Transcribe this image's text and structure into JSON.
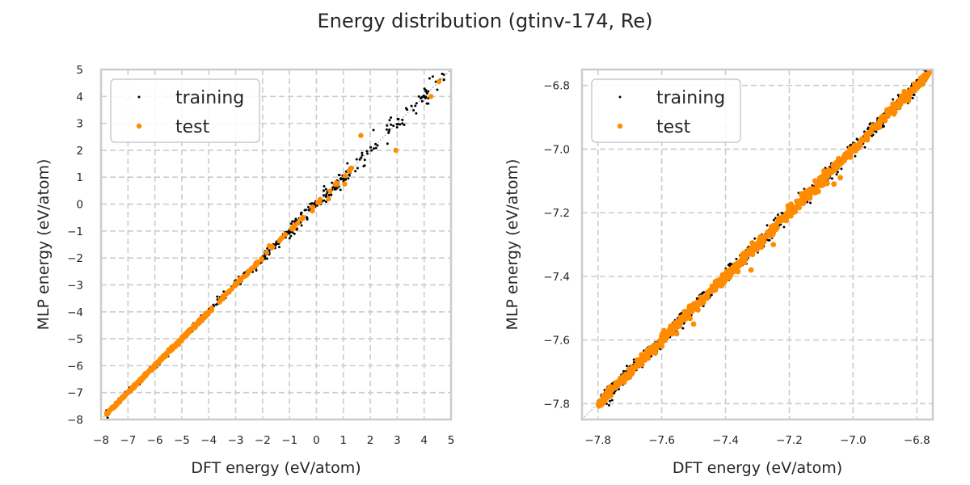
{
  "figure": {
    "title": "Energy distribution (gtinv-174, Re)",
    "colors": {
      "training": "#000000",
      "test": "#ff8c00",
      "grid": "#cccccc",
      "frame": "#cccccc",
      "diagonal": "#888888"
    }
  },
  "chart_data": [
    {
      "type": "scatter",
      "title": "",
      "xlabel": "DFT energy (eV/atom)",
      "ylabel": "MLP energy (eV/atom)",
      "xlim": [
        -8,
        5
      ],
      "ylim": [
        -8,
        5
      ],
      "xticks": [
        -8,
        -7,
        -6,
        -5,
        -4,
        -3,
        -2,
        -1,
        0,
        1,
        2,
        3,
        4,
        5
      ],
      "yticks": [
        -8,
        -7,
        -6,
        -5,
        -4,
        -3,
        -2,
        -1,
        0,
        1,
        2,
        3,
        4,
        5
      ],
      "grid": true,
      "legend": {
        "position": "top-left",
        "entries": [
          "training",
          "test"
        ]
      },
      "series": [
        {
          "name": "training",
          "color": "#000000",
          "note": "dense points along y=x from -7.8 to 4.9",
          "density_segments": [
            [
              -7.8,
              -4.0,
              420
            ],
            [
              -4.0,
              -1.0,
              160
            ],
            [
              -1.0,
              1.5,
              120
            ],
            [
              1.5,
              4.9,
              70
            ]
          ],
          "spread": [
            0.05,
            0.08,
            0.15,
            0.2
          ]
        },
        {
          "name": "test",
          "color": "#ff8c00",
          "note": "points along y=x, concentrated below -4",
          "density_segments": [
            [
              -7.8,
              -4.0,
              260
            ],
            [
              -4.0,
              -1.0,
              50
            ],
            [
              -1.0,
              1.5,
              20
            ]
          ],
          "outliers": [
            [
              1.65,
              2.55
            ],
            [
              1.05,
              0.75
            ],
            [
              2.95,
              2.0
            ],
            [
              4.25,
              4.0
            ],
            [
              4.55,
              4.55
            ],
            [
              -1.75,
              -1.55
            ],
            [
              -0.15,
              -0.25
            ],
            [
              0.45,
              0.2
            ]
          ]
        }
      ]
    },
    {
      "type": "scatter",
      "title": "",
      "xlabel": "DFT energy (eV/atom)",
      "ylabel": "MLP energy (eV/atom)",
      "xlim": [
        -7.85,
        -6.75
      ],
      "ylim": [
        -7.85,
        -6.75
      ],
      "xticks": [
        -7.8,
        -7.6,
        -7.4,
        -7.2,
        -7.0,
        -6.8
      ],
      "yticks": [
        -7.8,
        -7.6,
        -7.4,
        -7.2,
        -7.0,
        -6.8
      ],
      "grid": true,
      "legend": {
        "position": "top-left",
        "entries": [
          "training",
          "test"
        ]
      },
      "series": [
        {
          "name": "training",
          "color": "#000000",
          "range": [
            -7.8,
            -6.76
          ],
          "count": 900,
          "spread": 0.012
        },
        {
          "name": "test",
          "color": "#ff8c00",
          "range": [
            -7.8,
            -6.76
          ],
          "count": 700,
          "spread": 0.008,
          "outliers": [
            [
              -7.04,
              -7.09
            ],
            [
              -7.32,
              -7.38
            ],
            [
              -7.06,
              -7.11
            ],
            [
              -7.6,
              -7.62
            ],
            [
              -7.5,
              -7.55
            ],
            [
              -7.25,
              -7.3
            ]
          ]
        }
      ]
    }
  ],
  "tick_labels": {
    "left": [
      "−8",
      "−7",
      "−6",
      "−5",
      "−4",
      "−3",
      "−2",
      "−1",
      "0",
      "1",
      "2",
      "3",
      "4",
      "5"
    ],
    "right": [
      "−7.8",
      "−7.6",
      "−7.4",
      "−7.2",
      "−7.0",
      "−6.8"
    ]
  }
}
